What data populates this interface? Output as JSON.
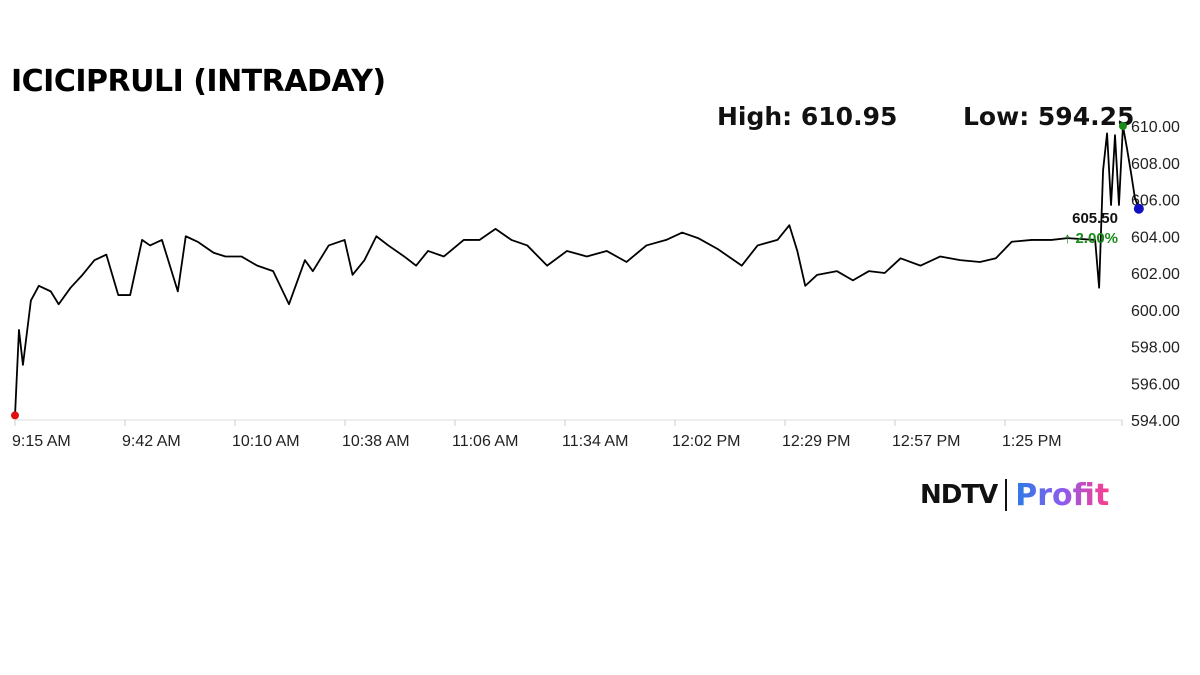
{
  "chart_data": {
    "type": "line",
    "title": "ICICIPRULI (INTRADAY)",
    "high_label": "High: 610.95",
    "low_label": "Low: 594.25",
    "last_price": "605.50",
    "change": "↑ 2.00%",
    "ylim": [
      594,
      610
    ],
    "yticks": [
      "594.00",
      "596.00",
      "598.00",
      "600.00",
      "602.00",
      "604.00",
      "606.00",
      "608.00",
      "610.00"
    ],
    "xticks": [
      "9:15 AM",
      "9:42 AM",
      "10:10 AM",
      "10:38 AM",
      "11:06 AM",
      "11:34 AM",
      "12:02 PM",
      "12:29 PM",
      "12:57 PM",
      "1:25 PM"
    ],
    "grid": false,
    "colors": {
      "line": "#000000",
      "low_marker": "#e01010",
      "high_marker": "#1a8a1a",
      "last_marker": "#1010c0",
      "change": "#1a8a1a"
    },
    "points": [
      [
        "9:15",
        594.25
      ],
      [
        "9:16",
        598.9
      ],
      [
        "9:17",
        597.0
      ],
      [
        "9:19",
        600.5
      ],
      [
        "9:21",
        601.3
      ],
      [
        "9:24",
        601.0
      ],
      [
        "9:26",
        600.3
      ],
      [
        "9:29",
        601.2
      ],
      [
        "9:32",
        601.9
      ],
      [
        "9:35",
        602.7
      ],
      [
        "9:38",
        603.0
      ],
      [
        "9:41",
        600.8
      ],
      [
        "9:44",
        600.8
      ],
      [
        "9:47",
        603.8
      ],
      [
        "9:49",
        603.5
      ],
      [
        "9:52",
        603.8
      ],
      [
        "9:56",
        601.0
      ],
      [
        "9:58",
        604.0
      ],
      [
        "10:01",
        603.7
      ],
      [
        "10:05",
        603.1
      ],
      [
        "10:08",
        602.9
      ],
      [
        "10:12",
        602.9
      ],
      [
        "10:16",
        602.4
      ],
      [
        "10:20",
        602.1
      ],
      [
        "10:24",
        600.3
      ],
      [
        "10:28",
        602.7
      ],
      [
        "10:30",
        602.1
      ],
      [
        "10:34",
        603.5
      ],
      [
        "10:38",
        603.8
      ],
      [
        "10:40",
        601.9
      ],
      [
        "10:43",
        602.7
      ],
      [
        "10:46",
        604.0
      ],
      [
        "10:49",
        603.5
      ],
      [
        "10:53",
        602.9
      ],
      [
        "10:56",
        602.4
      ],
      [
        "10:59",
        603.2
      ],
      [
        "11:03",
        602.9
      ],
      [
        "11:08",
        603.8
      ],
      [
        "11:12",
        603.8
      ],
      [
        "11:16",
        604.4
      ],
      [
        "11:20",
        603.8
      ],
      [
        "11:24",
        603.5
      ],
      [
        "11:29",
        602.4
      ],
      [
        "11:34",
        603.2
      ],
      [
        "11:39",
        602.9
      ],
      [
        "11:44",
        603.2
      ],
      [
        "11:49",
        602.6
      ],
      [
        "11:54",
        603.5
      ],
      [
        "11:59",
        603.8
      ],
      [
        "12:03",
        604.2
      ],
      [
        "12:07",
        603.9
      ],
      [
        "12:12",
        603.3
      ],
      [
        "12:18",
        602.4
      ],
      [
        "12:22",
        603.5
      ],
      [
        "12:27",
        603.8
      ],
      [
        "12:30",
        604.6
      ],
      [
        "12:32",
        603.2
      ],
      [
        "12:34",
        601.3
      ],
      [
        "12:37",
        601.9
      ],
      [
        "12:42",
        602.1
      ],
      [
        "12:46",
        601.6
      ],
      [
        "12:50",
        602.1
      ],
      [
        "12:54",
        602.0
      ],
      [
        "12:58",
        602.8
      ],
      [
        "13:03",
        602.4
      ],
      [
        "13:08",
        602.9
      ],
      [
        "13:13",
        602.7
      ],
      [
        "13:18",
        602.6
      ],
      [
        "13:22",
        602.8
      ],
      [
        "13:26",
        603.7
      ],
      [
        "13:31",
        603.8
      ],
      [
        "13:36",
        603.8
      ],
      [
        "13:40",
        603.9
      ],
      [
        "13:47",
        603.8
      ],
      [
        "13:48",
        601.2
      ],
      [
        "13:49",
        607.6
      ],
      [
        "13:50",
        609.6
      ],
      [
        "13:51",
        605.7
      ],
      [
        "13:52",
        609.5
      ],
      [
        "13:53",
        605.7
      ],
      [
        "13:54",
        610.0
      ],
      [
        "13:55",
        608.8
      ],
      [
        "13:56",
        607.5
      ],
      [
        "13:57",
        606.1
      ],
      [
        "13:58",
        605.5
      ]
    ]
  },
  "brand": {
    "name_left": "NDTV",
    "name_right": "Profit"
  }
}
